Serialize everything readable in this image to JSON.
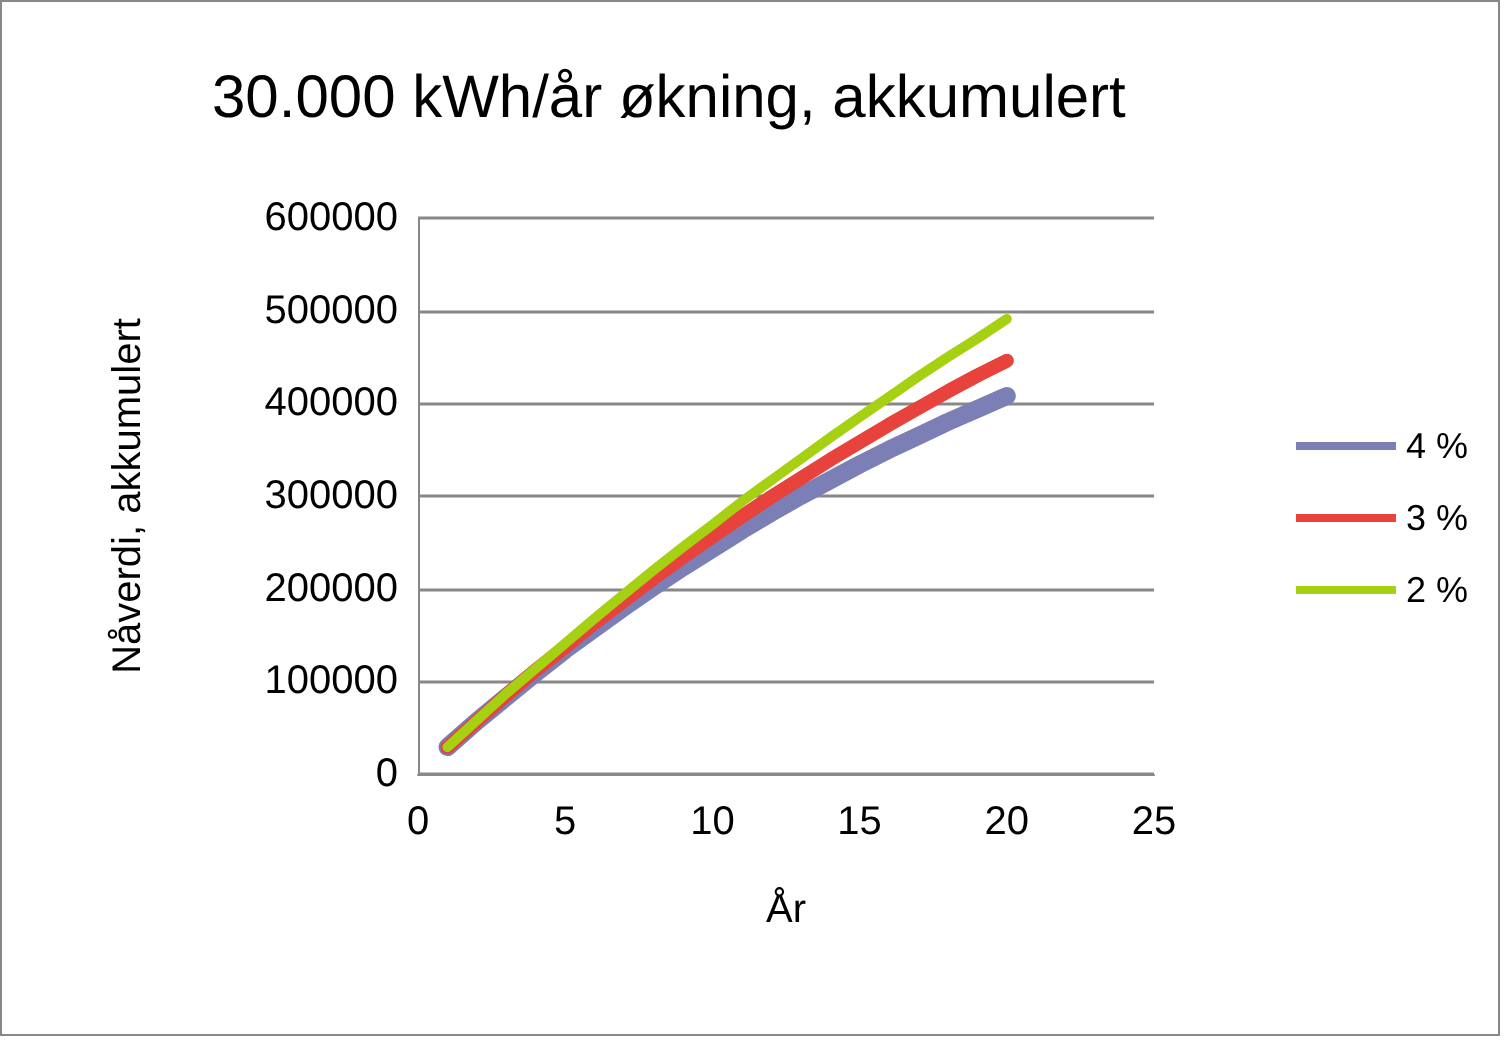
{
  "chart_data": {
    "type": "line",
    "title": "30.000 kWh/år økning, akkumulert",
    "xlabel": "År",
    "ylabel": "Nåverdi, akkumulert",
    "x": [
      1,
      2,
      3,
      4,
      5,
      6,
      7,
      8,
      9,
      10,
      11,
      12,
      13,
      14,
      15,
      16,
      17,
      18,
      19,
      20
    ],
    "series": [
      {
        "name": "4 %",
        "color": "#7b7fb5",
        "values": [
          29000,
          57000,
          83000,
          109000,
          134000,
          157000,
          180000,
          202000,
          223000,
          243000,
          263000,
          282000,
          300000,
          317000,
          334000,
          350000,
          365000,
          380000,
          394000,
          408000
        ]
      },
      {
        "name": "3 %",
        "color": "#e8423c",
        "values": [
          29000,
          57000,
          85000,
          112000,
          137000,
          163000,
          187000,
          211000,
          234000,
          256000,
          278000,
          299000,
          319000,
          339000,
          358000,
          377000,
          395000,
          413000,
          430000,
          446000
        ]
      },
      {
        "name": "2 %",
        "color": "#a6d012",
        "values": [
          29000,
          58000,
          87000,
          114000,
          141000,
          168000,
          194000,
          220000,
          245000,
          269000,
          294000,
          317000,
          340000,
          363000,
          385000,
          407000,
          429000,
          450000,
          470000,
          491000
        ]
      }
    ],
    "xlim": [
      0,
      25
    ],
    "xticks": [
      0,
      5,
      10,
      15,
      20,
      25
    ],
    "ylim": [
      0,
      600000
    ],
    "yticks": [
      0,
      100000,
      200000,
      300000,
      400000,
      500000,
      600000
    ],
    "grid": "y",
    "legend": "right",
    "marker": "none",
    "line_style": "solid"
  }
}
